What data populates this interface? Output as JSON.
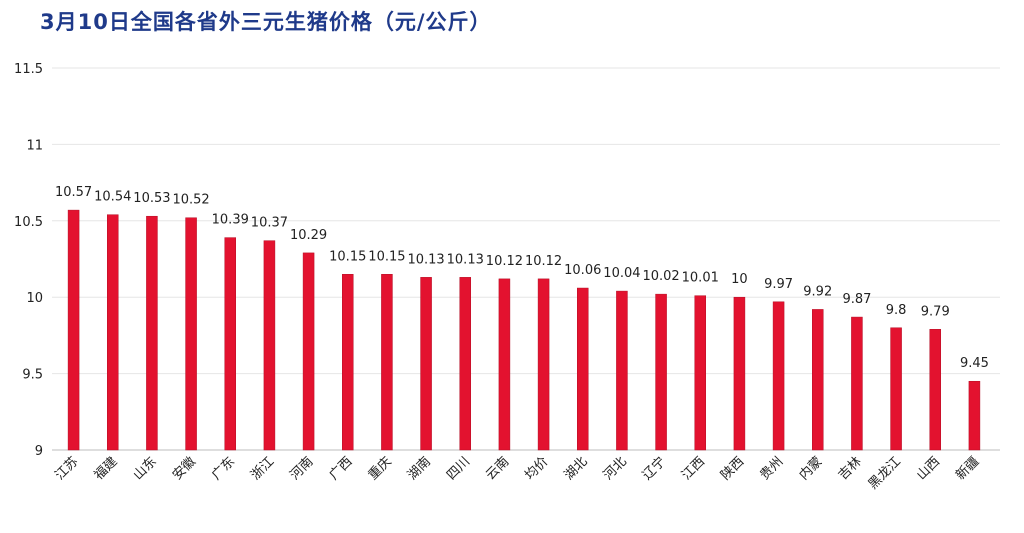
{
  "title": "3月10日全国各省外三元生猪价格（元/公斤）",
  "colors": {
    "bar": "#e3122f",
    "bar_edge": "#b50d24",
    "title": "#1f3a8a",
    "grid": "#e6e6e6",
    "text": "#222222"
  },
  "chart_data": {
    "type": "bar",
    "title": "3月10日全国各省外三元生猪价格（元/公斤）",
    "xlabel": "",
    "ylabel": "",
    "ylim": [
      9,
      11.5
    ],
    "yticks": [
      "9",
      "9.5",
      "10",
      "10.5",
      "11",
      "11.5"
    ],
    "grid": true,
    "categories": [
      "江苏",
      "福建",
      "山东",
      "安徽",
      "广东",
      "浙江",
      "河南",
      "广西",
      "重庆",
      "湖南",
      "四川",
      "云南",
      "均价",
      "湖北",
      "河北",
      "辽宁",
      "江西",
      "陕西",
      "贵州",
      "内蒙",
      "吉林",
      "黑龙江",
      "山西",
      "新疆"
    ],
    "values": [
      10.57,
      10.54,
      10.53,
      10.52,
      10.39,
      10.37,
      10.29,
      10.15,
      10.15,
      10.13,
      10.13,
      10.12,
      10.12,
      10.06,
      10.04,
      10.02,
      10.01,
      10,
      9.97,
      9.92,
      9.87,
      9.8,
      9.79,
      9.45
    ],
    "labels": [
      "10.57",
      "10.54",
      "10.53",
      "10.52",
      "10.39",
      "10.37",
      "10.29",
      "10.15",
      "10.15",
      "10.13",
      "10.13",
      "10.12",
      "10.12",
      "10.06",
      "10.04",
      "10.02",
      "10.01",
      "10",
      "9.97",
      "9.92",
      "9.87",
      "9.8",
      "9.79",
      "9.45"
    ]
  }
}
